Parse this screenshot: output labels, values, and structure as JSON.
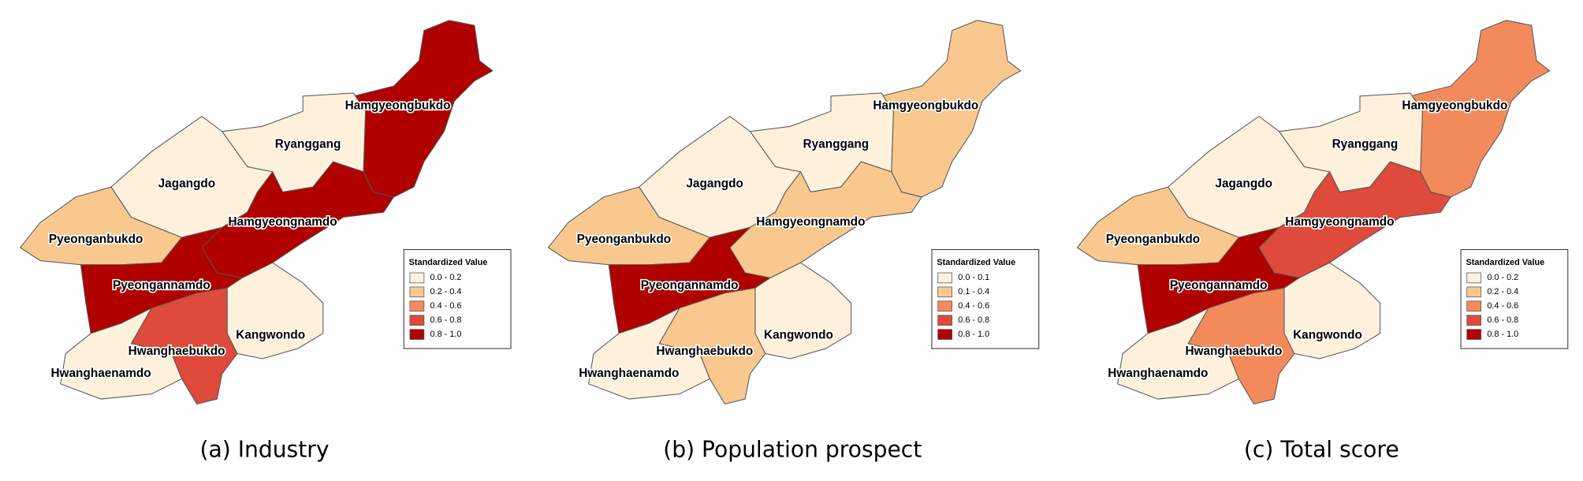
{
  "panels": [
    {
      "caption": "(a) Industry",
      "legend": {
        "title": "Standardized Value",
        "items": [
          {
            "label": "0.0 - 0.2",
            "color": "#fdf1dc"
          },
          {
            "label": "0.2 - 0.4",
            "color": "#f8c88e"
          },
          {
            "label": "0.4 - 0.6",
            "color": "#f38a5c"
          },
          {
            "label": "0.6 - 0.8",
            "color": "#de4a3c"
          },
          {
            "label": "0.8 - 1.0",
            "color": "#b00000"
          }
        ]
      },
      "regions": [
        {
          "name": "Hamgyeongbukdo",
          "color": "#b00000"
        },
        {
          "name": "Ryanggang",
          "color": "#fdf1dc"
        },
        {
          "name": "Jagangdo",
          "color": "#fdf1dc"
        },
        {
          "name": "Pyeonganbukdo",
          "color": "#f8c88e"
        },
        {
          "name": "Hamgyeongnamdo",
          "color": "#b00000"
        },
        {
          "name": "Pyeongannamdo",
          "color": "#b00000"
        },
        {
          "name": "Kangwondo",
          "color": "#fdf1dc"
        },
        {
          "name": "Hwanghaebukdo",
          "color": "#de4a3c"
        },
        {
          "name": "Hwanghaenamdo",
          "color": "#fdf1dc"
        }
      ]
    },
    {
      "caption": "(b) Population prospect",
      "legend": {
        "title": "Standardized Value",
        "items": [
          {
            "label": "0.0 - 0.1",
            "color": "#fdf1dc"
          },
          {
            "label": "0.1 - 0.4",
            "color": "#f8c88e"
          },
          {
            "label": "0.4 - 0.6",
            "color": "#f38a5c"
          },
          {
            "label": "0.6 - 0.8",
            "color": "#de4a3c"
          },
          {
            "label": "0.8 - 1.0",
            "color": "#b00000"
          }
        ]
      },
      "regions": [
        {
          "name": "Hamgyeongbukdo",
          "color": "#f8c88e"
        },
        {
          "name": "Ryanggang",
          "color": "#fdf1dc"
        },
        {
          "name": "Jagangdo",
          "color": "#fdf1dc"
        },
        {
          "name": "Pyeonganbukdo",
          "color": "#f8c88e"
        },
        {
          "name": "Hamgyeongnamdo",
          "color": "#f8c88e"
        },
        {
          "name": "Pyeongannamdo",
          "color": "#b00000"
        },
        {
          "name": "Kangwondo",
          "color": "#fdf1dc"
        },
        {
          "name": "Hwanghaebukdo",
          "color": "#f8c88e"
        },
        {
          "name": "Hwanghaenamdo",
          "color": "#fdf1dc"
        }
      ]
    },
    {
      "caption": "(c) Total score",
      "legend": {
        "title": "Standardized Value",
        "items": [
          {
            "label": "0.0 - 0.2",
            "color": "#fdf1dc"
          },
          {
            "label": "0.2 - 0.4",
            "color": "#f8c88e"
          },
          {
            "label": "0.4 - 0.6",
            "color": "#f38a5c"
          },
          {
            "label": "0.6 - 0.8",
            "color": "#de4a3c"
          },
          {
            "label": "0.8 - 1.0",
            "color": "#b00000"
          }
        ]
      },
      "regions": [
        {
          "name": "Hamgyeongbukdo",
          "color": "#f38a5c"
        },
        {
          "name": "Ryanggang",
          "color": "#fdf1dc"
        },
        {
          "name": "Jagangdo",
          "color": "#fdf1dc"
        },
        {
          "name": "Pyeonganbukdo",
          "color": "#f8c88e"
        },
        {
          "name": "Hamgyeongnamdo",
          "color": "#de4a3c"
        },
        {
          "name": "Pyeongannamdo",
          "color": "#b00000"
        },
        {
          "name": "Kangwondo",
          "color": "#fdf1dc"
        },
        {
          "name": "Hwanghaebukdo",
          "color": "#f38a5c"
        },
        {
          "name": "Hwanghaenamdo",
          "color": "#fdf1dc"
        }
      ]
    }
  ]
}
